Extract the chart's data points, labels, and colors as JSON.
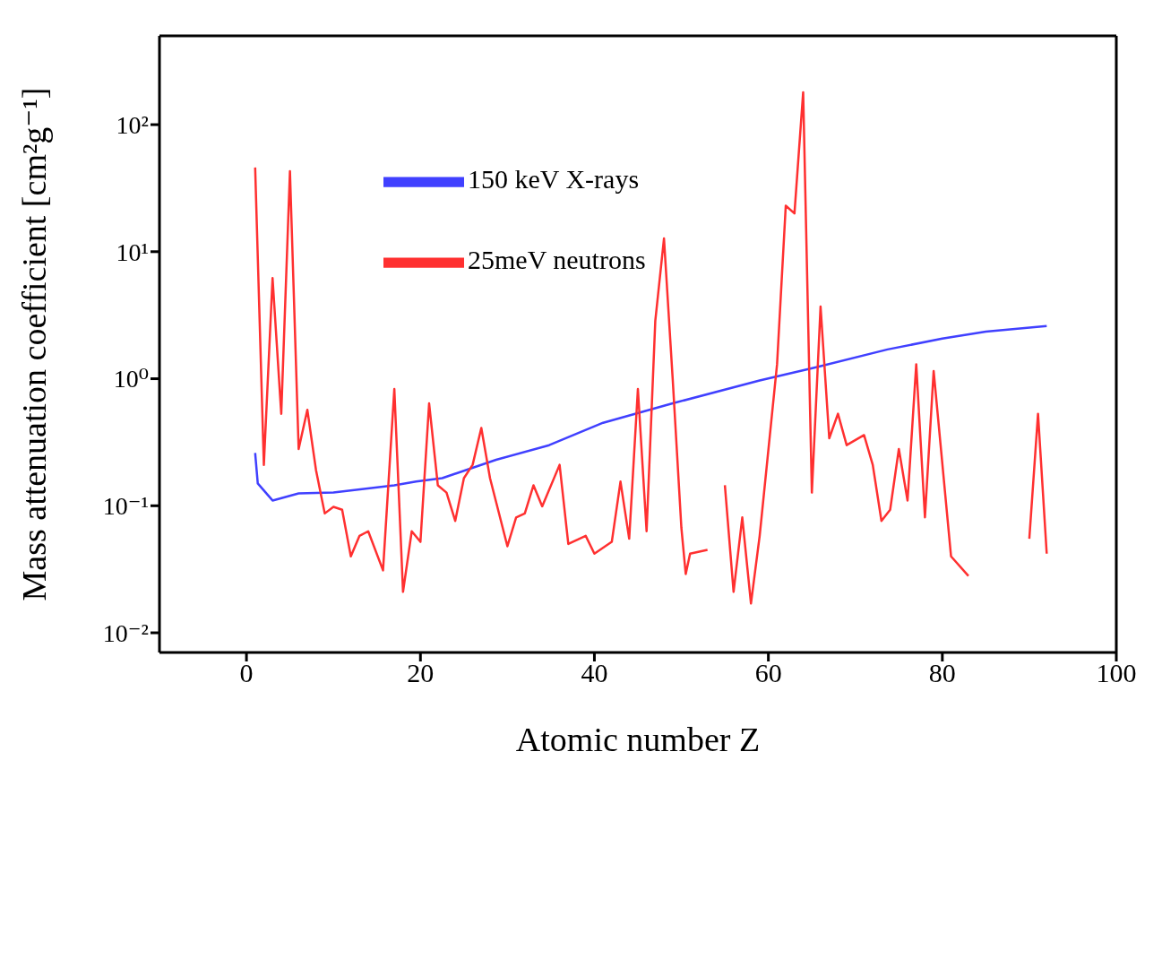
{
  "chart_data": {
    "type": "line",
    "xlabel": "Atomic number Z",
    "ylabel": "Mass attenuation coefficient [cm²g⁻¹]",
    "log": "y",
    "xlim": [
      -10,
      100
    ],
    "xticks": [
      0,
      20,
      40,
      60,
      80,
      100
    ],
    "ylim": [
      0.007,
      500
    ],
    "yticks": [
      {
        "value": 0.01,
        "label": "10⁻²"
      },
      {
        "value": 0.1,
        "label": "10⁻¹"
      },
      {
        "value": 1,
        "label": "10⁰"
      },
      {
        "value": 10,
        "label": "10¹"
      },
      {
        "value": 100,
        "label": "10²"
      }
    ],
    "legend": "top left",
    "marker": "none",
    "line_style": "solid",
    "series": [
      {
        "name": "150 keV X-rays",
        "color": "#4040ff",
        "x": [
          1,
          1.3,
          3,
          6,
          10,
          17,
          19.5,
          22.5,
          28.7,
          34.8,
          41,
          49,
          59,
          65.5,
          73.7,
          80,
          85,
          92
        ],
        "values": [
          0.26,
          0.15,
          0.11,
          0.125,
          0.127,
          0.145,
          0.155,
          0.165,
          0.23,
          0.3,
          0.45,
          0.64,
          0.97,
          1.23,
          1.7,
          2.07,
          2.35,
          2.6
        ]
      },
      {
        "name": "25meV neutrons",
        "color": "#ff3030",
        "x": [
          1,
          2,
          3,
          4,
          5,
          6,
          7,
          8,
          9,
          10,
          11,
          12,
          13,
          14,
          15.7,
          17,
          18,
          19,
          20,
          21,
          22,
          23,
          24,
          25,
          26,
          27,
          28,
          30,
          31,
          32,
          33,
          34,
          36,
          37,
          39,
          40,
          42,
          43,
          44,
          45,
          46,
          47,
          48,
          49,
          50,
          50.5,
          51,
          53,
          54,
          55,
          56,
          57,
          58,
          59,
          61,
          62,
          63,
          64,
          65,
          66,
          67,
          68,
          69,
          71,
          72,
          73,
          74,
          75,
          76,
          77,
          78,
          79,
          81,
          83,
          85,
          90,
          91,
          92
        ],
        "values": [
          46,
          0.21,
          6.2,
          0.53,
          43,
          0.28,
          0.57,
          0.19,
          0.087,
          0.098,
          0.093,
          0.04,
          0.058,
          0.063,
          0.031,
          0.83,
          0.021,
          0.063,
          0.052,
          0.64,
          0.145,
          0.127,
          0.076,
          0.165,
          0.21,
          0.41,
          0.165,
          0.048,
          0.081,
          0.087,
          0.145,
          0.099,
          0.21,
          0.05,
          0.058,
          0.042,
          0.052,
          0.155,
          0.055,
          0.83,
          0.063,
          2.85,
          12.7,
          1,
          0.067,
          0.029,
          0.042,
          0.045,
          null,
          0.145,
          0.021,
          0.081,
          0.017,
          0.058,
          1.3,
          23,
          20,
          180,
          0.127,
          3.7,
          0.34,
          0.53,
          0.3,
          0.36,
          0.21,
          0.076,
          0.093,
          0.28,
          0.11,
          1.3,
          0.081,
          1.15,
          0.04,
          0.028,
          null,
          0.055,
          0.53,
          0.042
        ]
      }
    ]
  }
}
